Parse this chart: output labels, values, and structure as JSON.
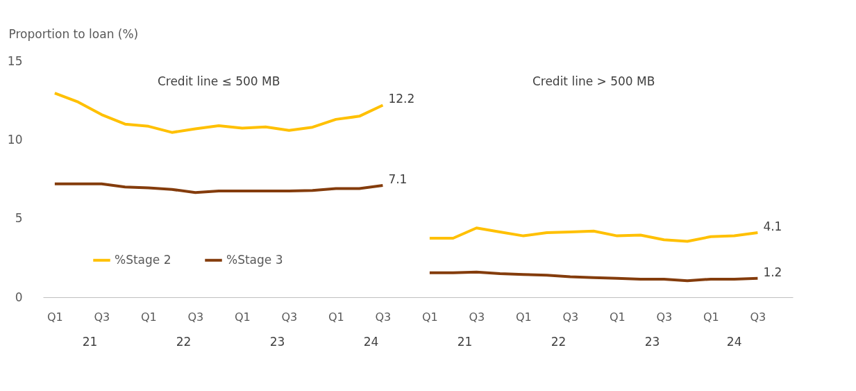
{
  "chart_data": {
    "type": "line",
    "ylabel": "Proportion to loan (%)",
    "categories": [
      "Q1",
      null,
      "Q3",
      null,
      "Q1",
      null,
      "Q3",
      null,
      "Q1",
      null,
      "Q3",
      null,
      "Q1",
      null,
      "Q3",
      null,
      "Q1",
      null,
      "Q3",
      null,
      "Q1",
      null,
      "Q3",
      null,
      "Q1",
      null,
      "Q3",
      null,
      "Q1",
      null,
      "Q3"
    ],
    "series": [
      {
        "name": "%Stage 2",
        "color": "#ffc000",
        "values": [
          12.97,
          12.4,
          11.6,
          11.0,
          10.86,
          10.47,
          10.7,
          10.9,
          10.74,
          10.82,
          10.6,
          10.8,
          11.3,
          11.5,
          12.2,
          null,
          3.75,
          3.75,
          4.4,
          4.15,
          3.9,
          4.1,
          4.15,
          4.2,
          3.9,
          3.95,
          3.65,
          3.55,
          3.85,
          3.9,
          4.1
        ],
        "value_labels": [
          null,
          null,
          null,
          null,
          null,
          null,
          null,
          null,
          null,
          null,
          null,
          null,
          null,
          null,
          "12.2",
          null,
          null,
          null,
          null,
          null,
          null,
          null,
          null,
          null,
          null,
          null,
          null,
          null,
          null,
          null,
          "4.1"
        ]
      },
      {
        "name": "%Stage 3",
        "color": "#843c0c",
        "values": [
          7.2,
          7.2,
          7.2,
          7.0,
          6.95,
          6.85,
          6.65,
          6.75,
          6.75,
          6.75,
          6.75,
          6.78,
          6.9,
          6.9,
          7.1,
          null,
          1.55,
          1.55,
          1.6,
          1.5,
          1.45,
          1.4,
          1.3,
          1.25,
          1.2,
          1.15,
          1.15,
          1.05,
          1.15,
          1.15,
          1.2
        ],
        "value_labels": [
          null,
          null,
          null,
          null,
          null,
          null,
          null,
          null,
          null,
          null,
          null,
          null,
          null,
          null,
          "7.1",
          null,
          null,
          null,
          null,
          null,
          null,
          null,
          null,
          null,
          null,
          null,
          null,
          null,
          null,
          null,
          "1.2"
        ]
      }
    ],
    "ylim": [
      0,
      15
    ],
    "yticks": [
      0,
      5,
      10,
      15
    ],
    "grid": false,
    "legend": "left",
    "marker": "none",
    "line_style": "solid",
    "annotations": [
      "Credit line ≤ 500 MB",
      "Credit line > 500 MB",
      "21",
      "22",
      "23",
      "24",
      "21",
      "22",
      "23",
      "24"
    ]
  }
}
